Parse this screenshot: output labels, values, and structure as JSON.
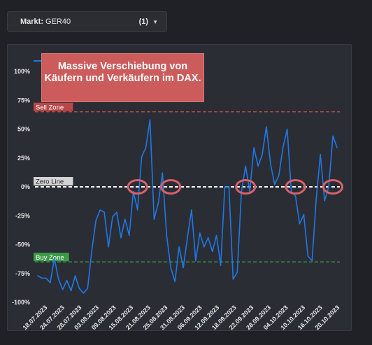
{
  "market_selector": {
    "label": "Markt:",
    "value": "GER40",
    "count": "(1)"
  },
  "callout_text": "Massive Verschiebung von Käufern und Verkäufern im DAX.",
  "chart_data": {
    "type": "line",
    "title": "",
    "xlabel": "",
    "ylabel": "",
    "ylim": [
      -100,
      100
    ],
    "yticks": [
      "100%",
      "75%",
      "50%",
      "25%",
      "0%",
      "-25%",
      "-50%",
      "-75%",
      "-100%"
    ],
    "ytick_values": [
      100,
      75,
      50,
      25,
      0,
      -25,
      -50,
      -75,
      -100
    ],
    "xtick_labels": [
      "18.07.2023",
      "24.07.2023",
      "28.07.2023",
      "03.08.2023",
      "09.08.2023",
      "15.08.2023",
      "21.08.2023",
      "25.08.2023",
      "31.08.2023",
      "06.09.2023",
      "12.09.2023",
      "18.09.2023",
      "22.09.2023",
      "28.09.2023",
      "04.10.2023",
      "10.10.2023",
      "16.10.2023",
      "20.10.2023"
    ],
    "series": [
      {
        "name": "",
        "color": "#1f78e6",
        "values": [
          -77,
          -79,
          -79,
          -83,
          -62,
          -80,
          -89,
          -81,
          -90,
          -77,
          -88,
          -92,
          -88,
          -55,
          -29,
          -20,
          -22,
          -52,
          -26,
          -22,
          -44,
          -28,
          -42,
          -4,
          -20,
          26,
          34,
          58,
          -28,
          -14,
          12,
          -42,
          -70,
          -82,
          -52,
          -70,
          -44,
          -20,
          -64,
          -40,
          -52,
          -44,
          -56,
          -42,
          -68,
          0,
          0,
          -80,
          -74,
          -4,
          18,
          -4,
          34,
          18,
          28,
          52,
          20,
          2,
          10,
          34,
          50,
          -4,
          -8,
          -32,
          -24,
          -60,
          -64,
          -10,
          28,
          -12,
          0,
          44,
          34
        ]
      }
    ],
    "reference_lines": [
      {
        "label": "Sell Zone",
        "value": 65,
        "color": "#c84a4a"
      },
      {
        "label": "Zero Line",
        "value": 0,
        "color": "#ffffff"
      },
      {
        "label": "Buy Zone",
        "value": -65,
        "color": "#3fa64a"
      }
    ],
    "highlight_markers": [
      {
        "index": 24
      },
      {
        "index": 32
      },
      {
        "index": 50
      },
      {
        "index": 62
      },
      {
        "index": 71
      }
    ],
    "grid": false,
    "colors": {
      "line": "#1f78e6",
      "marker": "#d9606a",
      "axis_text": "#e6e6e6"
    }
  }
}
